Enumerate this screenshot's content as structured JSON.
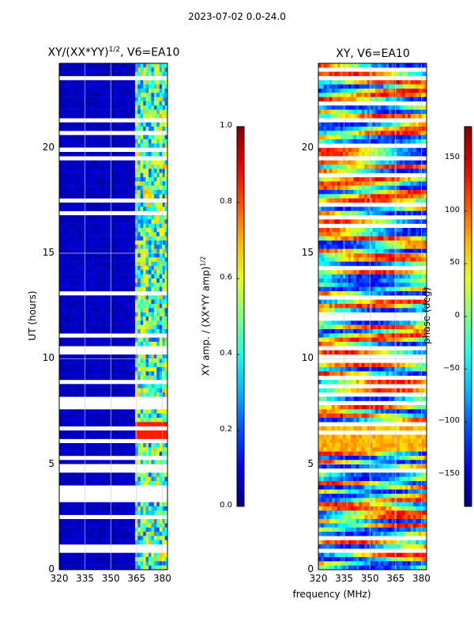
{
  "suptitle": "2023-07-02 0.0-24.0",
  "chart_data": [
    {
      "type": "heatmap",
      "title": "XY/(XX*YY)",
      "title_exp": "1/2",
      "title_suffix": ", V6=EA10",
      "xlabel": "",
      "ylabel": "UT (hours)",
      "xticks": [
        320,
        335,
        350,
        365,
        380
      ],
      "xlim": [
        320,
        383
      ],
      "yticks": [
        0,
        5,
        10,
        15,
        20
      ],
      "ylim": [
        0,
        24
      ],
      "colorbar": {
        "label": "XY amp. / (XX*YY amp)",
        "label_exp": "1/2",
        "ticks": [
          "0.0",
          "0.2",
          "0.4",
          "0.6",
          "0.8",
          "1.0"
        ],
        "range": [
          0,
          1
        ],
        "colormap": "jet"
      },
      "data_description": "low values (~0.05) below 364 MHz, elevated ~0.3-0.8 bands between 364-380 MHz; many flagged (white) time gaps"
    },
    {
      "type": "heatmap",
      "title": "XY, V6=EA10",
      "xlabel": "frequency (MHz)",
      "ylabel": "",
      "xticks": [
        320,
        335,
        350,
        365,
        380
      ],
      "xlim": [
        320,
        383
      ],
      "yticks": [
        0,
        5,
        10,
        15,
        20
      ],
      "ylim": [
        0,
        24
      ],
      "colorbar": {
        "label": "phase (deg)",
        "ticks": [
          "150",
          "100",
          "50",
          "0",
          "−50",
          "−100",
          "−150"
        ],
        "range": [
          -180,
          180
        ],
        "colormap": "jet"
      },
      "data_description": "phase varies over full -180..180 deg range with noisy structure; many flagged (white) time gaps"
    }
  ]
}
